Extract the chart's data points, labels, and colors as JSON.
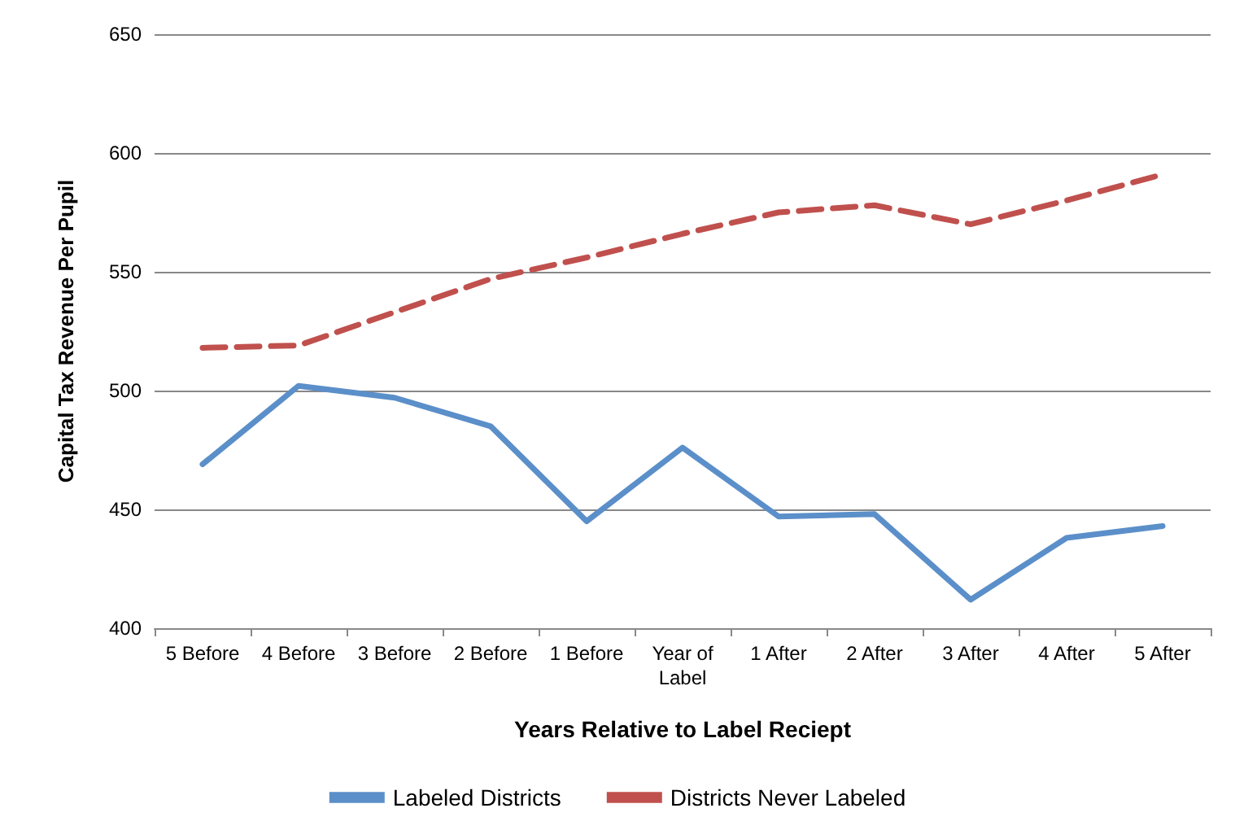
{
  "chart_data": {
    "type": "line",
    "xlabel": "Years Relative to Label Reciept",
    "ylabel": "Capital Tax Revenue Per Pupil",
    "categories": [
      "5 Before",
      "4 Before",
      "3 Before",
      "2 Before",
      "1 Before",
      "Year of\nLabel",
      "1 After",
      "2 After",
      "3 After",
      "4 After",
      "5 After"
    ],
    "series": [
      {
        "name": "Labeled Districts",
        "color": "#5b8fc9",
        "line_style": "solid",
        "values": [
          469,
          502,
          497,
          485,
          445,
          476,
          447,
          448,
          412,
          438,
          443
        ]
      },
      {
        "name": "Districts Never Labeled",
        "color": "#c0504d",
        "line_style": "dashed",
        "values": [
          518,
          519,
          533,
          547,
          556,
          566,
          575,
          578,
          570,
          580,
          591
        ]
      }
    ],
    "ylim": [
      400,
      650
    ],
    "yticks": [
      400,
      450,
      500,
      550,
      600,
      650
    ],
    "grid": "y",
    "legend": "bottom",
    "marker": "none"
  }
}
